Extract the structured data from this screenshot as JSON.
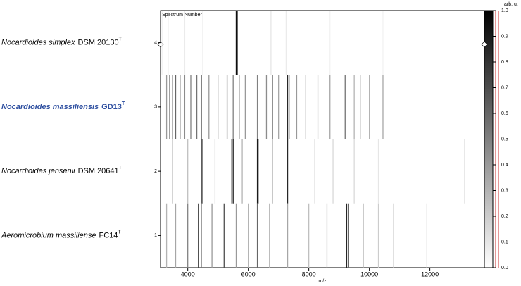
{
  "chart_data": {
    "type": "gel",
    "x_label": "m/z",
    "y_label": "Spectrum Number",
    "xlim": [
      3100,
      13800
    ],
    "xticks": [
      4000,
      6000,
      8000,
      10000,
      12000
    ],
    "ylim": [
      0.5,
      4.5
    ],
    "yticks": [
      1,
      2,
      3,
      4
    ],
    "colorbar": {
      "label": "arb. u.",
      "lim": [
        0,
        1
      ],
      "ticks": [
        {
          "value": 0,
          "label": "0.0"
        },
        0.1,
        0.2,
        0.3,
        0.4,
        0.5,
        0.6,
        0.7,
        0.8,
        0.9,
        {
          "value": 1,
          "label": "1.0"
        }
      ]
    },
    "spectra": [
      {
        "number": 4,
        "species": "Nocardioides simplex",
        "strain": "DSM 20130",
        "superscript": "T",
        "color": "#000000",
        "bold": false,
        "mz": [
          3150,
          3350,
          3900,
          4500,
          5600,
          5640,
          6750,
          7250,
          8700,
          10450
        ],
        "intensity": [
          0.05,
          0.1,
          0.08,
          0.1,
          0.95,
          0.7,
          0.1,
          0.08,
          0.05,
          0.05
        ]
      },
      {
        "number": 3,
        "species": "Nocardioides massiliensis",
        "strain": "GD13",
        "superscript": "T",
        "color": "#2e4fa0",
        "bold": true,
        "mz": [
          3300,
          3400,
          3500,
          3600,
          3750,
          3900,
          4100,
          4300,
          4450,
          4700,
          5000,
          5300,
          5500,
          5700,
          5900,
          6300,
          6600,
          6800,
          7000,
          7300,
          7350,
          7600,
          7900,
          8300,
          8700,
          9200,
          9500,
          9700,
          10000,
          10450
        ],
        "intensity": [
          0.4,
          0.5,
          0.35,
          0.6,
          0.4,
          0.45,
          0.5,
          0.55,
          0.7,
          0.4,
          0.35,
          0.6,
          0.5,
          0.55,
          0.4,
          0.5,
          0.45,
          0.6,
          0.35,
          0.85,
          0.6,
          0.4,
          0.35,
          0.3,
          0.35,
          0.55,
          0.3,
          0.35,
          0.3,
          0.35
        ]
      },
      {
        "number": 2,
        "species": "Nocardioides jensenii",
        "strain": "DSM 20641",
        "superscript": "T",
        "color": "#000000",
        "bold": false,
        "mz": [
          3500,
          4000,
          4470,
          4900,
          5450,
          5500,
          5800,
          6300,
          6330,
          6800,
          7300,
          8200,
          8800,
          9500,
          10300,
          13150
        ],
        "intensity": [
          0.2,
          0.25,
          0.85,
          0.2,
          0.5,
          0.9,
          0.3,
          0.9,
          0.6,
          0.3,
          0.85,
          0.2,
          0.15,
          0.15,
          0.1,
          0.15
        ]
      },
      {
        "number": 1,
        "species": "Aeromicrobium massiliense",
        "strain": "FC14",
        "superscript": "T",
        "color": "#000000",
        "bold": false,
        "mz": [
          3300,
          3600,
          4000,
          4350,
          4450,
          4800,
          5200,
          5600,
          6000,
          6300,
          6700,
          7300,
          8000,
          8600,
          9250,
          9300,
          9800,
          10300,
          10800,
          11900
        ],
        "intensity": [
          0.3,
          0.35,
          0.5,
          0.75,
          0.55,
          0.4,
          0.7,
          0.4,
          0.3,
          0.6,
          0.3,
          0.35,
          0.25,
          0.3,
          0.85,
          0.6,
          0.3,
          0.2,
          0.2,
          0.15
        ]
      }
    ]
  }
}
